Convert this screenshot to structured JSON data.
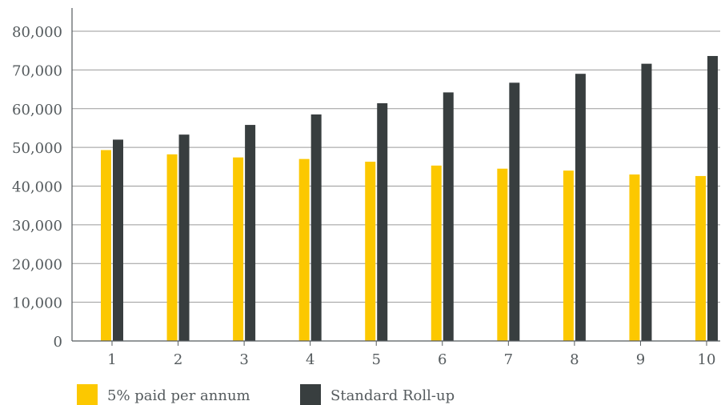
{
  "chart_data": {
    "type": "bar",
    "title": "",
    "xlabel": "",
    "ylabel": "",
    "categories": [
      "1",
      "2",
      "3",
      "4",
      "5",
      "6",
      "7",
      "8",
      "9",
      "10"
    ],
    "series": [
      {
        "name": "5% paid per annum",
        "color": "#fcc800",
        "values": [
          49300,
          48200,
          47400,
          47000,
          46300,
          45300,
          44500,
          44000,
          43000,
          42600
        ]
      },
      {
        "name": "Standard Roll-up",
        "color": "#383e3f",
        "values": [
          52000,
          53300,
          55800,
          58500,
          61400,
          64200,
          66700,
          69000,
          71600,
          73600
        ]
      }
    ],
    "ylim": [
      0,
      80000
    ],
    "yticks": [
      0,
      10000,
      20000,
      30000,
      40000,
      50000,
      60000,
      70000,
      80000
    ],
    "ytick_labels": [
      "0",
      "10,000",
      "20,000",
      "30,000",
      "40,000",
      "50,000",
      "60,000",
      "70,000",
      "80,000"
    ],
    "grid": true,
    "legend_position": "bottom-left"
  }
}
